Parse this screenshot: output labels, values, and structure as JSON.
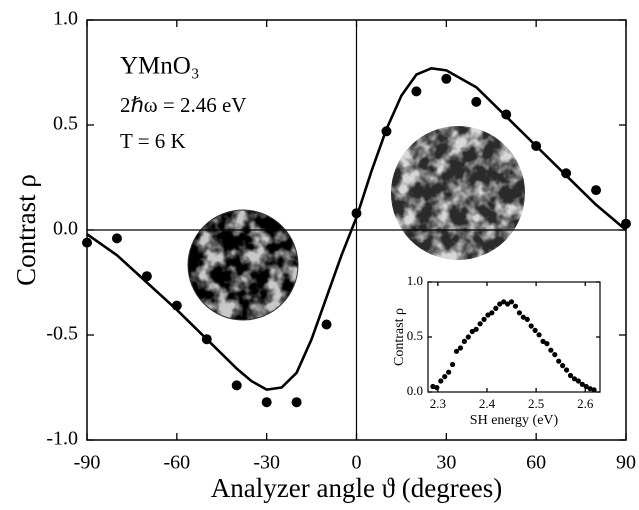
{
  "chart_data": [
    {
      "type": "scatter",
      "annotations": [
        "YMnO₃",
        "2ℏω = 2.46 eV",
        "T = 6 K"
      ],
      "xlabel": "Analyzer angle ϑ (degrees)",
      "ylabel": "Contrast ρ",
      "xlim": [
        -90,
        90
      ],
      "ylim": [
        -1,
        1
      ],
      "xticks": [
        -90,
        -60,
        -30,
        0,
        30,
        60,
        90
      ],
      "yticks": [
        {
          "value": -1,
          "label": "-1.0"
        },
        {
          "value": -0.5,
          "label": "-0.5"
        },
        {
          "value": 0,
          "label": "0.0"
        },
        {
          "value": 0.5,
          "label": "0.5"
        },
        {
          "value": 1,
          "label": "1.0"
        }
      ],
      "series": [
        {
          "color": "#000000",
          "x": [
            -90,
            -80,
            -70,
            -60,
            -50,
            -40,
            -30,
            -20,
            -10,
            0,
            10,
            20,
            30,
            40,
            50,
            60,
            70,
            80,
            90
          ],
          "values": [
            -0.06,
            -0.04,
            -0.22,
            -0.36,
            -0.52,
            -0.74,
            -0.82,
            -0.82,
            -0.45,
            0.08,
            0.47,
            0.66,
            0.72,
            0.61,
            0.55,
            0.4,
            0.27,
            0.19,
            0.03
          ]
        },
        {
          "color": "#000000",
          "line": true,
          "x": [
            -90,
            -80,
            -70,
            -60,
            -50,
            -40,
            -35,
            -30,
            -25,
            -20,
            -15,
            -10,
            -5,
            0,
            5,
            10,
            15,
            20,
            25,
            30,
            40,
            50,
            60,
            70,
            80,
            90
          ],
          "values": [
            -0.02,
            -0.12,
            -0.25,
            -0.38,
            -0.52,
            -0.66,
            -0.72,
            -0.76,
            -0.75,
            -0.68,
            -0.52,
            -0.32,
            -0.12,
            0.06,
            0.28,
            0.48,
            0.64,
            0.74,
            0.77,
            0.76,
            0.68,
            0.54,
            0.4,
            0.26,
            0.12,
            0.0
          ]
        }
      ]
    },
    {
      "type": "scatter",
      "xlabel": "SH energy (eV)",
      "ylabel": "Contrast ρ",
      "xlim": [
        2.28,
        2.63
      ],
      "ylim": [
        0,
        1
      ],
      "xticks": [
        2.3,
        2.4,
        2.5,
        2.6
      ],
      "yticks": [
        {
          "value": 0,
          "label": "0.0"
        },
        {
          "value": 0.5,
          "label": "0.5"
        },
        {
          "value": 1,
          "label": "1.0"
        }
      ],
      "series": [
        {
          "color": "#000000",
          "x": [
            2.29,
            2.298,
            2.306,
            2.314,
            2.322,
            2.33,
            2.338,
            2.346,
            2.354,
            2.362,
            2.37,
            2.378,
            2.386,
            2.394,
            2.402,
            2.41,
            2.418,
            2.426,
            2.434,
            2.442,
            2.45,
            2.458,
            2.466,
            2.474,
            2.482,
            2.49,
            2.498,
            2.506,
            2.514,
            2.522,
            2.53,
            2.538,
            2.546,
            2.554,
            2.562,
            2.57,
            2.578,
            2.586,
            2.594,
            2.602,
            2.61,
            2.618
          ],
          "values": [
            0.05,
            0.04,
            0.1,
            0.14,
            0.18,
            0.25,
            0.37,
            0.4,
            0.46,
            0.5,
            0.55,
            0.57,
            0.62,
            0.66,
            0.7,
            0.72,
            0.76,
            0.8,
            0.82,
            0.8,
            0.82,
            0.78,
            0.72,
            0.68,
            0.66,
            0.6,
            0.56,
            0.52,
            0.46,
            0.44,
            0.38,
            0.34,
            0.28,
            0.24,
            0.2,
            0.15,
            0.12,
            0.1,
            0.07,
            0.05,
            0.03,
            0.02
          ]
        }
      ]
    }
  ]
}
